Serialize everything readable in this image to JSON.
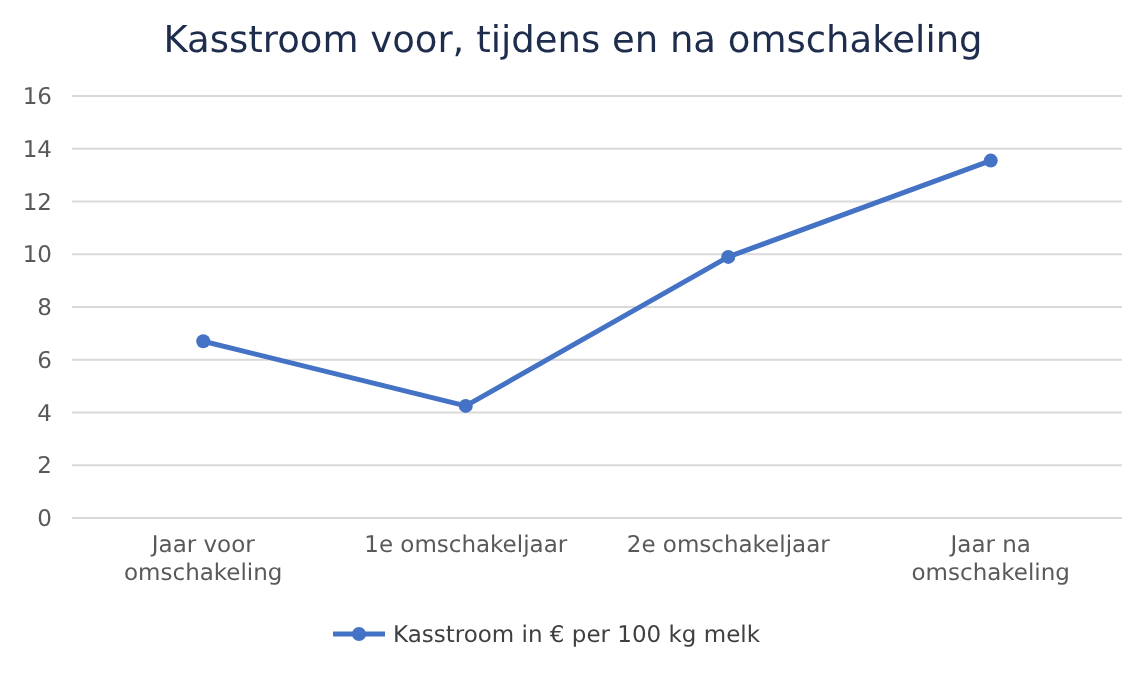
{
  "chart_data": {
    "type": "line",
    "title": "Kasstroom voor, tijdens en na omschakeling",
    "categories": [
      "Jaar voor omschakeling",
      "1e omschakeljaar",
      "2e omschakeljaar",
      "Jaar na omschakeling"
    ],
    "series": [
      {
        "name": "Kasstroom in € per 100 kg melk",
        "color": "#4472c4",
        "values": [
          6.7,
          4.25,
          9.9,
          13.55
        ]
      }
    ],
    "ylim": [
      0,
      16
    ],
    "yticks": [
      0,
      2,
      4,
      6,
      8,
      10,
      12,
      14,
      16
    ],
    "grid": "y",
    "legend": "bottom",
    "marker": "circle",
    "line_style": "solid"
  }
}
